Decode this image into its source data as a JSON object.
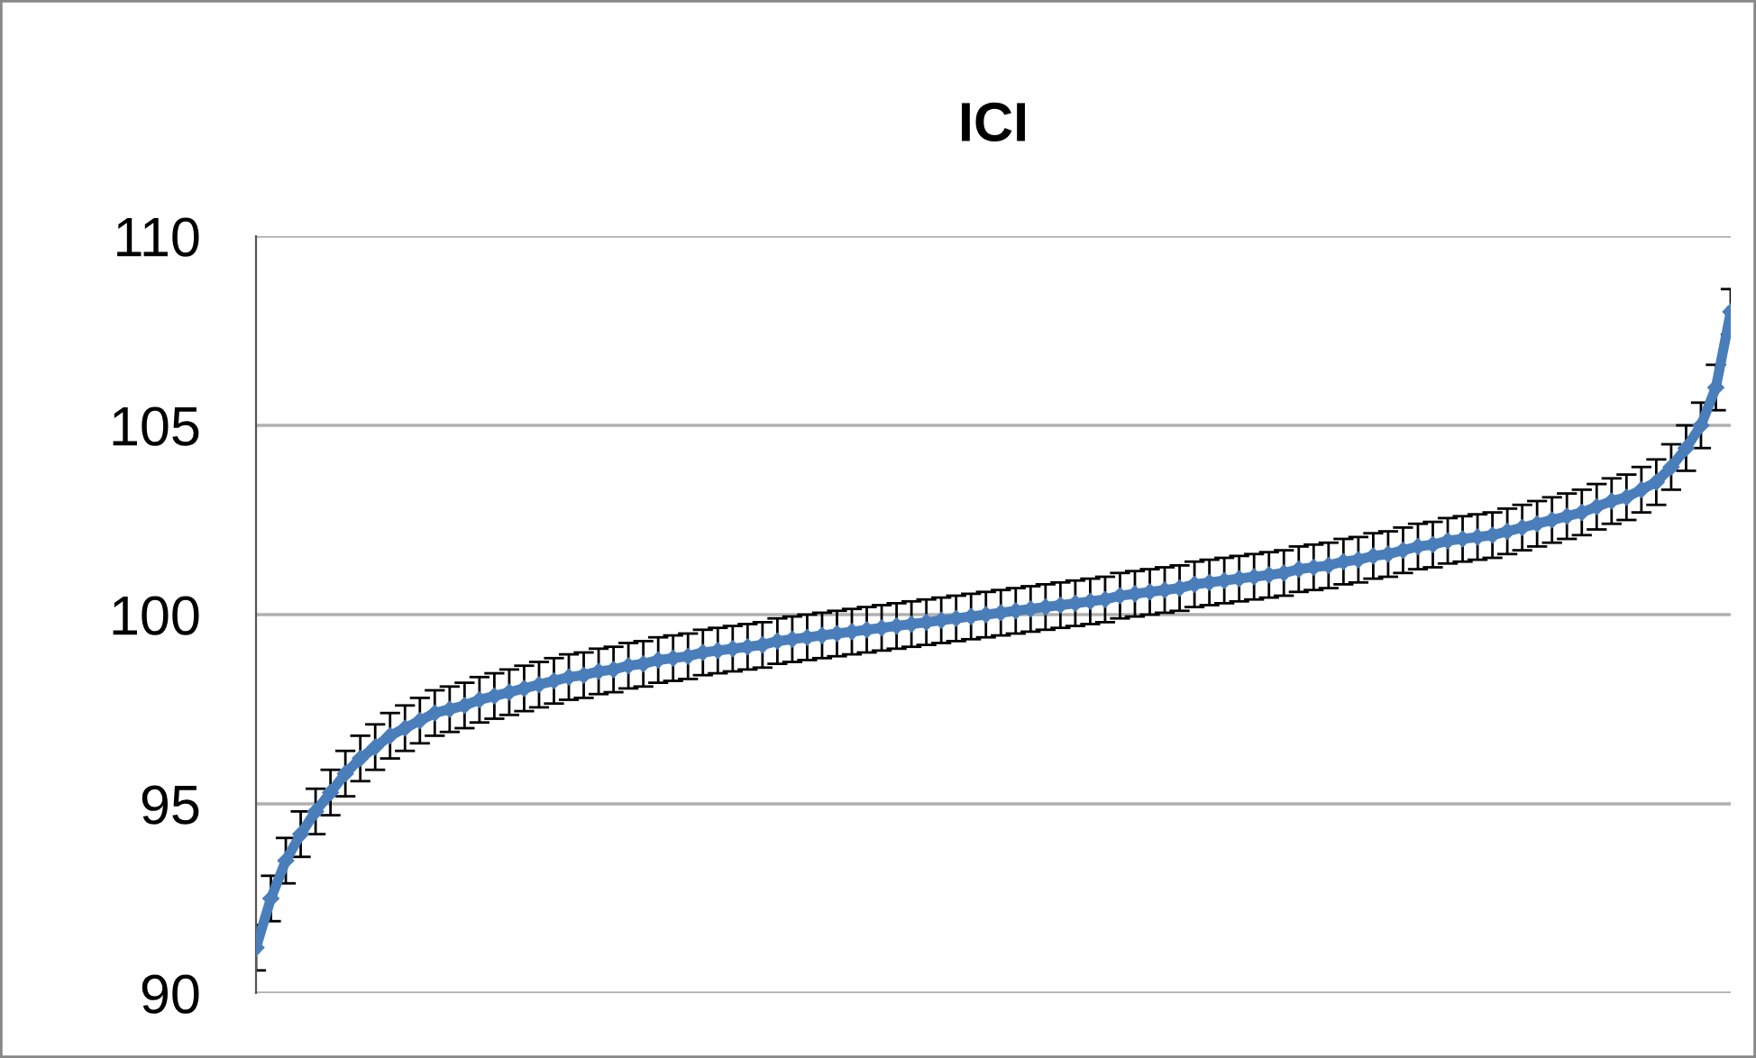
{
  "chart_data": {
    "type": "line",
    "title": "ICI",
    "categories": [
      null,
      null,
      null,
      null,
      null,
      null,
      null,
      null,
      null,
      null,
      null,
      null,
      null,
      null,
      null,
      null,
      null,
      null,
      null,
      null,
      null,
      null,
      null,
      null,
      null,
      null,
      null,
      null,
      null,
      null,
      null,
      null,
      null,
      null,
      null,
      null,
      null,
      null,
      null,
      null,
      null,
      null,
      null,
      null,
      null,
      null,
      null,
      null,
      null,
      null,
      null,
      null,
      null,
      null,
      null,
      null,
      null,
      null,
      null,
      null,
      null,
      null,
      null,
      null,
      null,
      null,
      null,
      null,
      null,
      null,
      null,
      null,
      null,
      null,
      null,
      null,
      null,
      null,
      null,
      null,
      null,
      null,
      null,
      null,
      null,
      null,
      null,
      null,
      null,
      null,
      null,
      null,
      null,
      null,
      null,
      null,
      null,
      null,
      null,
      null
    ],
    "series": [
      {
        "color": "#4a7ebb",
        "values": [
          91.2,
          92.5,
          93.5,
          94.2,
          94.8,
          95.3,
          95.8,
          96.2,
          96.5,
          96.8,
          97.0,
          97.2,
          97.4,
          97.5,
          97.6,
          97.75,
          97.85,
          97.95,
          98.05,
          98.15,
          98.25,
          98.35,
          98.4,
          98.5,
          98.55,
          98.65,
          98.7,
          98.8,
          98.85,
          98.9,
          99.0,
          99.05,
          99.1,
          99.15,
          99.2,
          99.3,
          99.35,
          99.4,
          99.45,
          99.5,
          99.55,
          99.6,
          99.65,
          99.7,
          99.75,
          99.8,
          99.85,
          99.9,
          99.95,
          100.0,
          100.05,
          100.1,
          100.15,
          100.2,
          100.25,
          100.3,
          100.35,
          100.4,
          100.5,
          100.55,
          100.6,
          100.65,
          100.7,
          100.8,
          100.85,
          100.9,
          100.95,
          101.0,
          101.05,
          101.1,
          101.2,
          101.25,
          101.3,
          101.4,
          101.45,
          101.55,
          101.6,
          101.7,
          101.8,
          101.85,
          101.95,
          102.0,
          102.05,
          102.1,
          102.2,
          102.3,
          102.4,
          102.5,
          102.6,
          102.7,
          102.85,
          103.0,
          103.1,
          103.3,
          103.5,
          103.9,
          104.4,
          105.0,
          106.0,
          108.0
        ],
        "errors": [
          0.6,
          0.6,
          0.6,
          0.6,
          0.6,
          0.6,
          0.6,
          0.6,
          0.6,
          0.6,
          0.6,
          0.6,
          0.6,
          0.6,
          0.6,
          0.6,
          0.6,
          0.6,
          0.6,
          0.6,
          0.6,
          0.6,
          0.6,
          0.6,
          0.6,
          0.6,
          0.6,
          0.6,
          0.6,
          0.6,
          0.6,
          0.6,
          0.6,
          0.6,
          0.6,
          0.6,
          0.6,
          0.6,
          0.6,
          0.6,
          0.6,
          0.6,
          0.6,
          0.6,
          0.6,
          0.6,
          0.6,
          0.6,
          0.6,
          0.6,
          0.6,
          0.6,
          0.6,
          0.6,
          0.6,
          0.6,
          0.6,
          0.6,
          0.6,
          0.6,
          0.6,
          0.6,
          0.6,
          0.6,
          0.6,
          0.6,
          0.6,
          0.6,
          0.6,
          0.6,
          0.6,
          0.6,
          0.6,
          0.6,
          0.6,
          0.6,
          0.6,
          0.6,
          0.6,
          0.6,
          0.6,
          0.6,
          0.6,
          0.6,
          0.6,
          0.6,
          0.6,
          0.6,
          0.6,
          0.6,
          0.6,
          0.6,
          0.6,
          0.6,
          0.6,
          0.6,
          0.6,
          0.6,
          0.6,
          0.6
        ]
      }
    ],
    "ylim": [
      90,
      110
    ],
    "yticks": [
      90,
      95,
      100,
      105,
      110
    ],
    "grid": "y",
    "tick_labels": "y",
    "marker": "diamond",
    "line_style": "solid"
  }
}
